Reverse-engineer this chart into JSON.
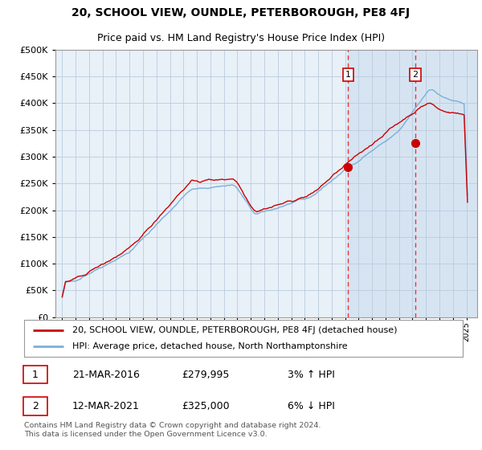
{
  "title": "20, SCHOOL VIEW, OUNDLE, PETERBOROUGH, PE8 4FJ",
  "subtitle": "Price paid vs. HM Land Registry's House Price Index (HPI)",
  "legend_line1": "20, SCHOOL VIEW, OUNDLE, PETERBOROUGH, PE8 4FJ (detached house)",
  "legend_line2": "HPI: Average price, detached house, North Northamptonshire",
  "annotation1_date": "21-MAR-2016",
  "annotation1_price": "£279,995",
  "annotation1_hpi": "3% ↑ HPI",
  "annotation2_date": "12-MAR-2021",
  "annotation2_price": "£325,000",
  "annotation2_hpi": "6% ↓ HPI",
  "footer": "Contains HM Land Registry data © Crown copyright and database right 2024.\nThis data is licensed under the Open Government Licence v3.0.",
  "sale1_year": 2016.22,
  "sale1_value": 279995,
  "sale2_year": 2021.2,
  "sale2_value": 325000,
  "ylim_min": 0,
  "ylim_max": 500000,
  "xlim_min": 1994.5,
  "xlim_max": 2025.8,
  "plot_bg_color": "#e8f0f8",
  "shade_color": "#cfe0f0",
  "grid_color": "#bbccdd",
  "red_line_color": "#cc0000",
  "blue_line_color": "#7ab0d8",
  "dashed_line_color": "#ee3333",
  "title_fontsize": 10,
  "subtitle_fontsize": 9
}
